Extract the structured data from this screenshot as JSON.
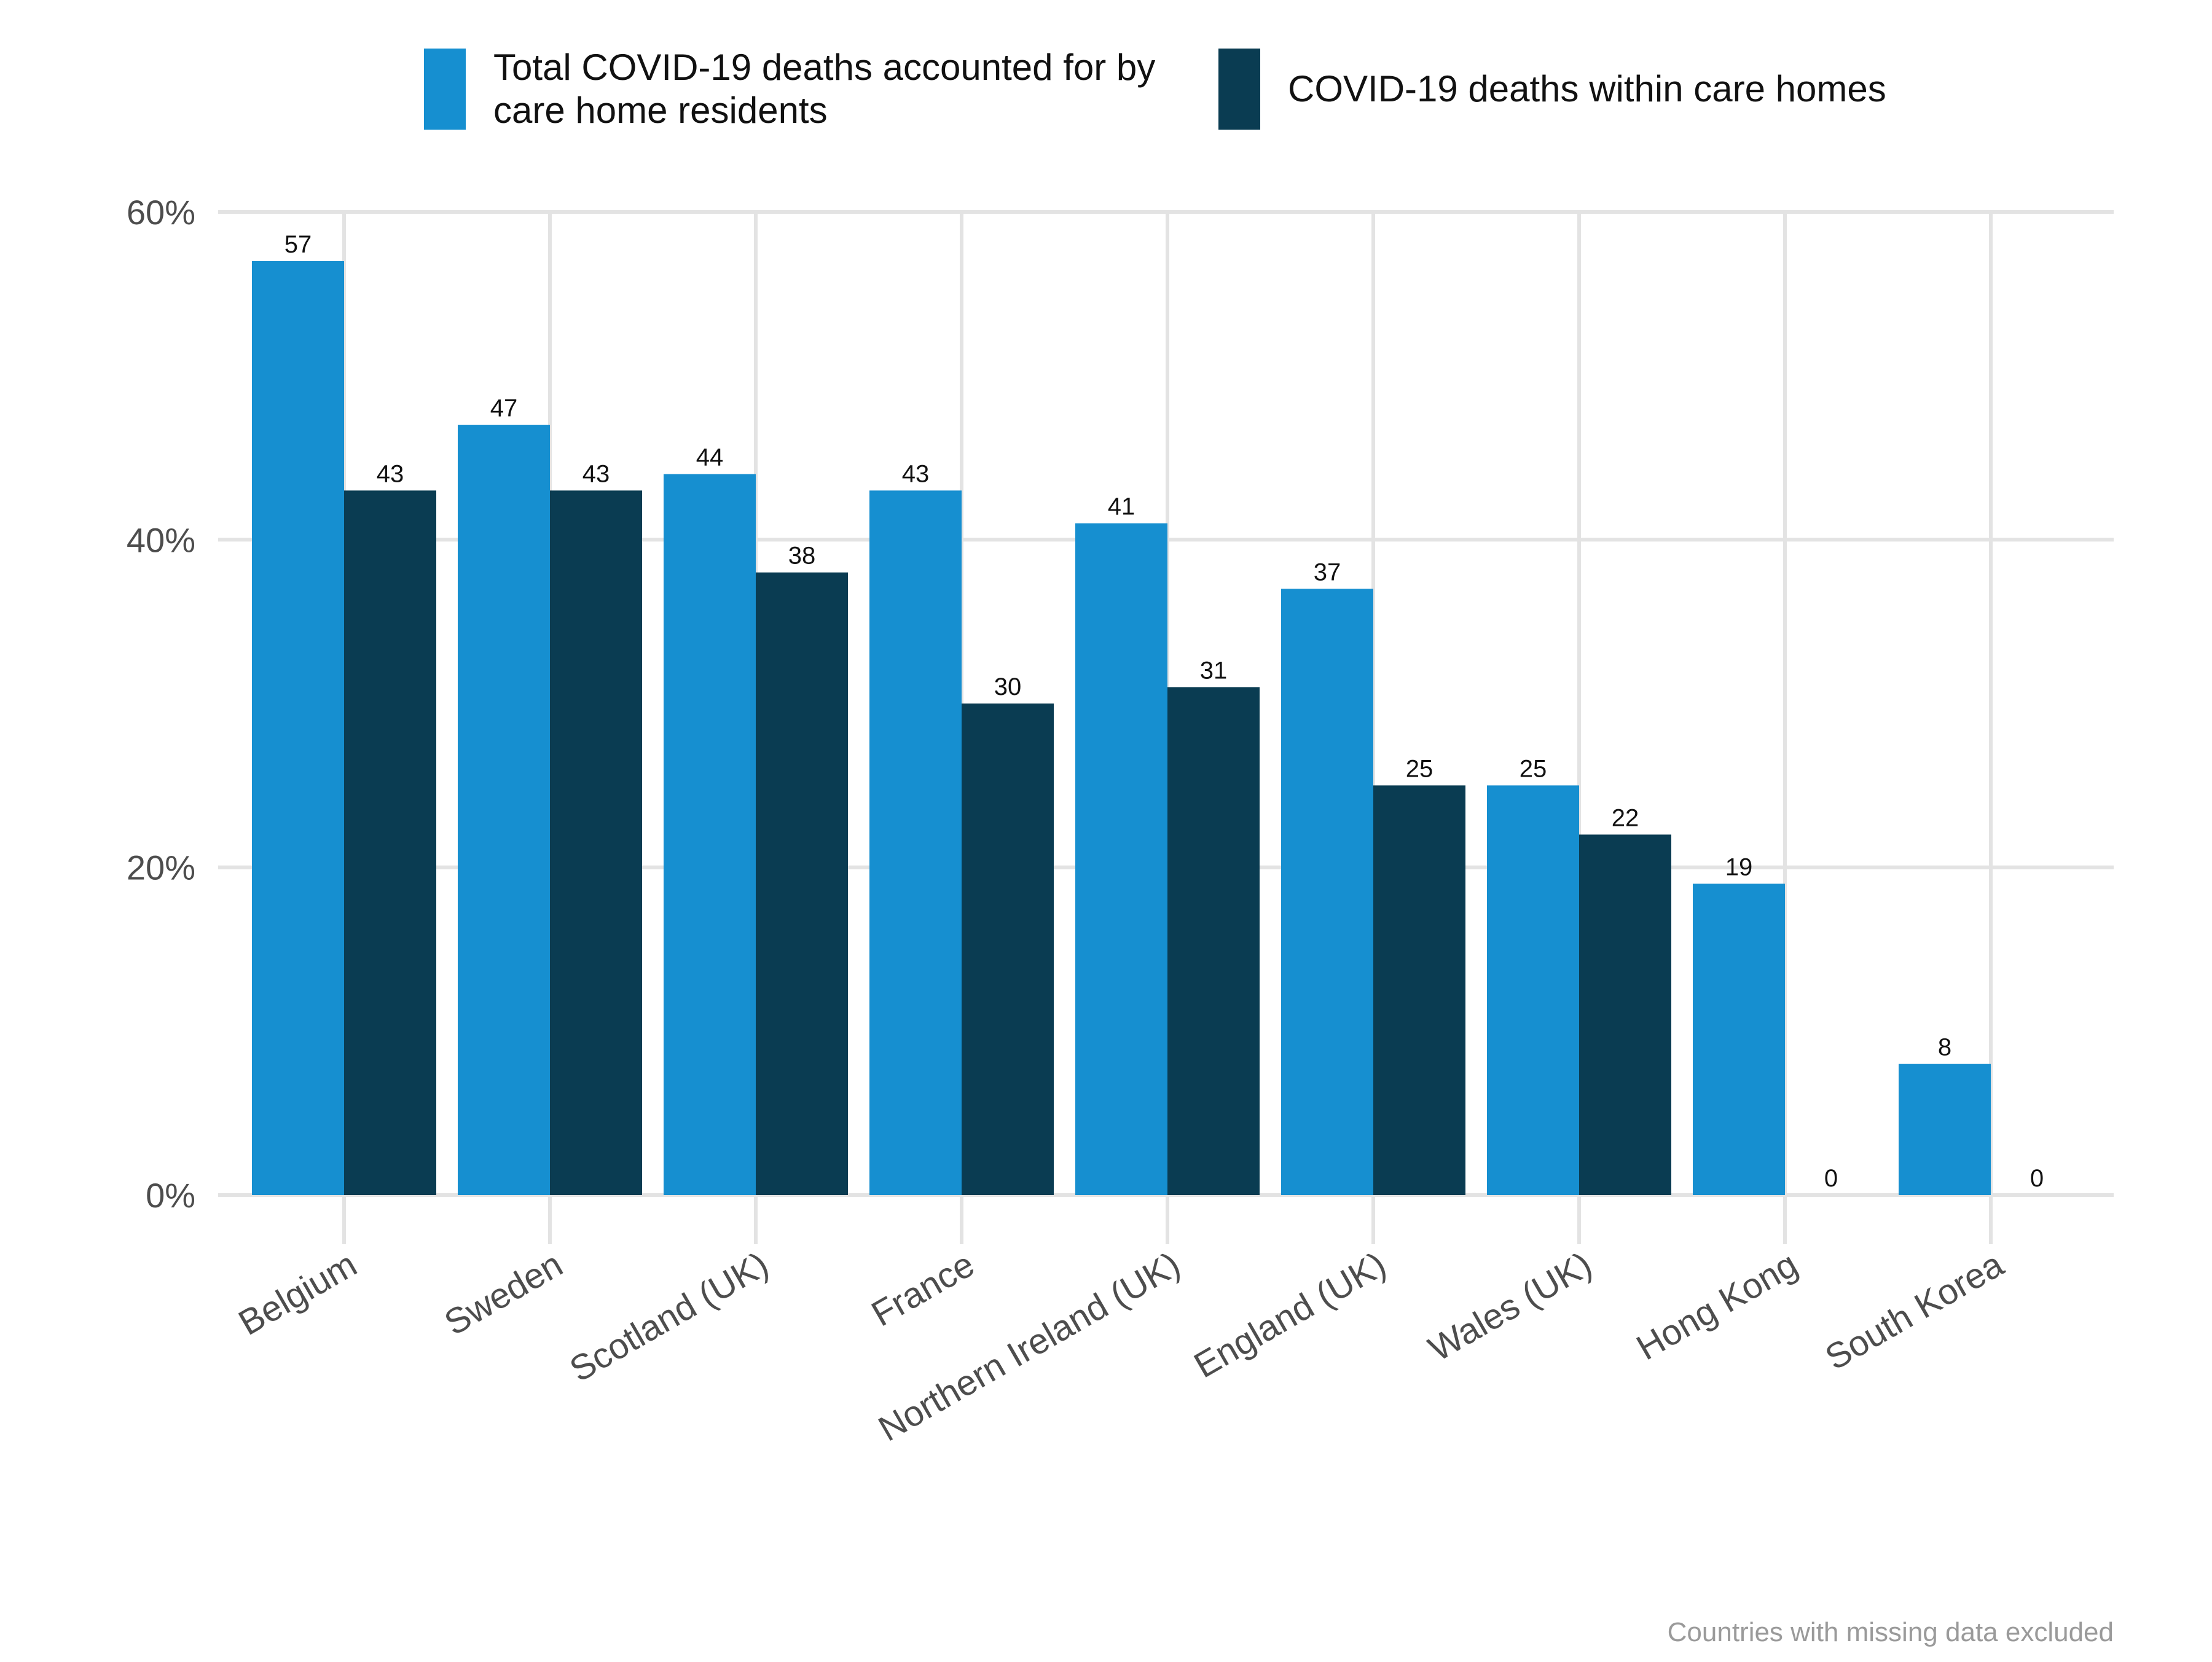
{
  "chart_data": {
    "type": "bar",
    "categories": [
      "Belgium",
      "Sweden",
      "Scotland (UK)",
      "France",
      "Northern Ireland (UK)",
      "England (UK)",
      "Wales (UK)",
      "Hong Kong",
      "South Korea"
    ],
    "series": [
      {
        "name": "Total COVID-19 deaths accounted for by care home residents",
        "values": [
          57,
          47,
          44,
          43,
          41,
          37,
          25,
          19,
          8
        ],
        "color": "#168fd0"
      },
      {
        "name": "COVID-19 deaths within care homes",
        "values": [
          43,
          43,
          38,
          30,
          31,
          25,
          22,
          0,
          0
        ],
        "color": "#0a3c52"
      }
    ],
    "data_labels": [
      [
        "57",
        "47",
        "44",
        "43",
        "41",
        "37",
        "25",
        "19",
        "8"
      ],
      [
        "43",
        "43",
        "38",
        "30",
        "31",
        "25",
        "22",
        "0",
        "0"
      ]
    ],
    "ylim": [
      0,
      60
    ],
    "yticks": [
      0,
      20,
      40,
      60
    ],
    "ytick_labels": [
      "0%",
      "20%",
      "40%",
      "60%"
    ],
    "grid": true,
    "legend_position": "top-center",
    "caption": "Countries with missing data excluded"
  }
}
